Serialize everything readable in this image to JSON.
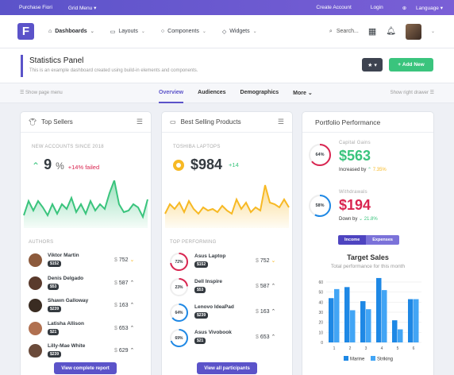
{
  "topbar": {
    "purchase": "Purchase Fiori",
    "grid_menu": "Grid Menu",
    "create_account": "Create Account",
    "login": "Login",
    "language": "Language"
  },
  "header": {
    "logo": "F",
    "nav": [
      "Dashboards",
      "Layouts",
      "Components",
      "Widgets"
    ],
    "search": "Search..."
  },
  "page": {
    "title": "Statistics Panel",
    "subtitle": "This is an example dashboard created using build-in elements and components.",
    "add_new": "Add New"
  },
  "tabbar": {
    "show_menu": "Show page menu",
    "show_drawer": "Show right drawer",
    "tabs": [
      "Overview",
      "Audiences",
      "Demographics",
      "More"
    ]
  },
  "top_sellers": {
    "title": "Top Sellers",
    "kicker": "NEW ACCOUNTS SINCE 2018",
    "value": "9",
    "unit": "%",
    "delta": "+14% failed",
    "authors_label": "AUTHORS",
    "authors": [
      {
        "name": "Viktor Martin",
        "badge": "$152",
        "amount": "752"
      },
      {
        "name": "Denis Delgado",
        "badge": "$53",
        "amount": "587"
      },
      {
        "name": "Shawn Galloway",
        "badge": "$239",
        "amount": "163"
      },
      {
        "name": "Latisha Allison",
        "badge": "$21",
        "amount": "653"
      },
      {
        "name": "Lilly-Mae White",
        "badge": "$239",
        "amount": "629"
      }
    ],
    "footer": "View complete report"
  },
  "best_selling": {
    "title": "Best Selling Products",
    "kicker": "TOSHIBA LAPTOPS",
    "value": "$984",
    "delta": "+14",
    "top_label": "TOP PERFORMING",
    "items": [
      {
        "pct": "72%",
        "name": "Asus Laptop",
        "badge": "$152",
        "amount": "752"
      },
      {
        "pct": "23%",
        "name": "Dell Inspire",
        "badge": "$53",
        "amount": "587"
      },
      {
        "pct": "64%",
        "name": "Lenovo IdeaPad",
        "badge": "$239",
        "amount": "163"
      },
      {
        "pct": "69%",
        "name": "Asus Vivobook",
        "badge": "$21",
        "amount": "653"
      }
    ],
    "footer": "View all participants"
  },
  "portfolio": {
    "title": "Portfolio Performance",
    "capital": {
      "label": "Capital Gains",
      "value": "$563",
      "pct": "64%",
      "trend": "Increased by",
      "change": "7.35%"
    },
    "withdrawals": {
      "label": "Withdrawals",
      "value": "$194",
      "pct": "58%",
      "trend": "Down by",
      "change": "21.8%"
    },
    "toggle": [
      "Income",
      "Expenses"
    ],
    "chart_title": "Target Sales",
    "chart_subtitle": "Total performance for this month"
  },
  "chart_data": {
    "type": "bar",
    "categories": [
      "1",
      "2",
      "3",
      "4",
      "5",
      "6"
    ],
    "series": [
      {
        "name": "Marine",
        "values": [
          44,
          55,
          41,
          64,
          22,
          43
        ]
      },
      {
        "name": "Striking",
        "values": [
          53,
          32,
          33,
          52,
          13,
          43
        ]
      }
    ],
    "ylim": [
      0,
      60
    ],
    "yticks": [
      0,
      10,
      20,
      30,
      40,
      50,
      60
    ],
    "colors": {
      "Marine": "#1e88e5",
      "Striking": "#42a5f5"
    }
  }
}
